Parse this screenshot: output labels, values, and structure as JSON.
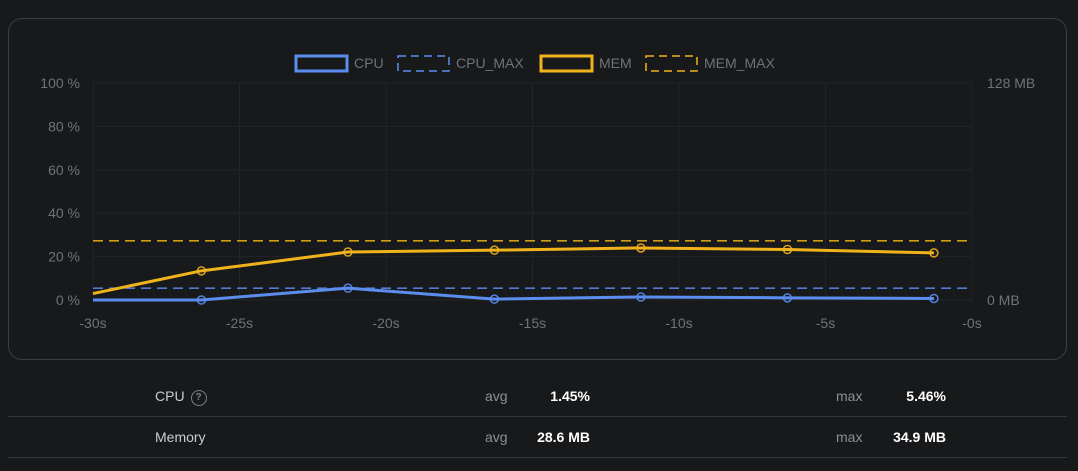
{
  "chart_data": {
    "type": "line",
    "title": "",
    "x": [
      -30,
      -26.3,
      -21.3,
      -16.3,
      -11.3,
      -6.3,
      -1.3
    ],
    "x_ticks": [
      "-30s",
      "-25s",
      "-20s",
      "-15s",
      "-10s",
      "-5s",
      "-0s"
    ],
    "y_left_ticks": [
      "100 %",
      "80 %",
      "60 %",
      "40 %",
      "20 %",
      "0 %"
    ],
    "y_right_ticks": [
      "128 MB",
      "0 MB"
    ],
    "ylim_left": [
      0,
      100
    ],
    "ylim_right_mb": [
      0,
      128
    ],
    "grid": true,
    "legend_position": "top",
    "legend": [
      "CPU",
      "CPU_MAX",
      "MEM",
      "MEM_MAX"
    ],
    "series": [
      {
        "name": "CPU",
        "axis": "left",
        "unit": "%",
        "style": "solid",
        "color": "#5b8def",
        "values": [
          0,
          0,
          5.46,
          0.4,
          1.4,
          1.0,
          0.7
        ]
      },
      {
        "name": "CPU_MAX",
        "axis": "left",
        "unit": "%",
        "style": "dashed",
        "color": "#5b8def",
        "values": [
          5.46,
          5.46,
          5.46,
          5.46,
          5.46,
          5.46,
          5.46
        ]
      },
      {
        "name": "MEM",
        "axis": "right",
        "unit": "MB",
        "style": "solid",
        "color": "#f0b31c",
        "values": [
          3.8,
          17.2,
          28.3,
          29.4,
          30.7,
          29.8,
          27.8
        ]
      },
      {
        "name": "MEM_MAX",
        "axis": "right",
        "unit": "MB",
        "style": "dashed",
        "color": "#f0b31c",
        "values": [
          34.9,
          34.9,
          34.9,
          34.9,
          34.9,
          34.9,
          34.9
        ]
      }
    ]
  },
  "stats": {
    "cpu": {
      "label": "CPU",
      "help_icon": "?",
      "avg_label": "avg",
      "avg": "1.45%",
      "max_label": "max",
      "max": "5.46%"
    },
    "memory": {
      "label": "Memory",
      "avg_label": "avg",
      "avg": "28.6 MB",
      "max_label": "max",
      "max": "34.9 MB"
    }
  }
}
